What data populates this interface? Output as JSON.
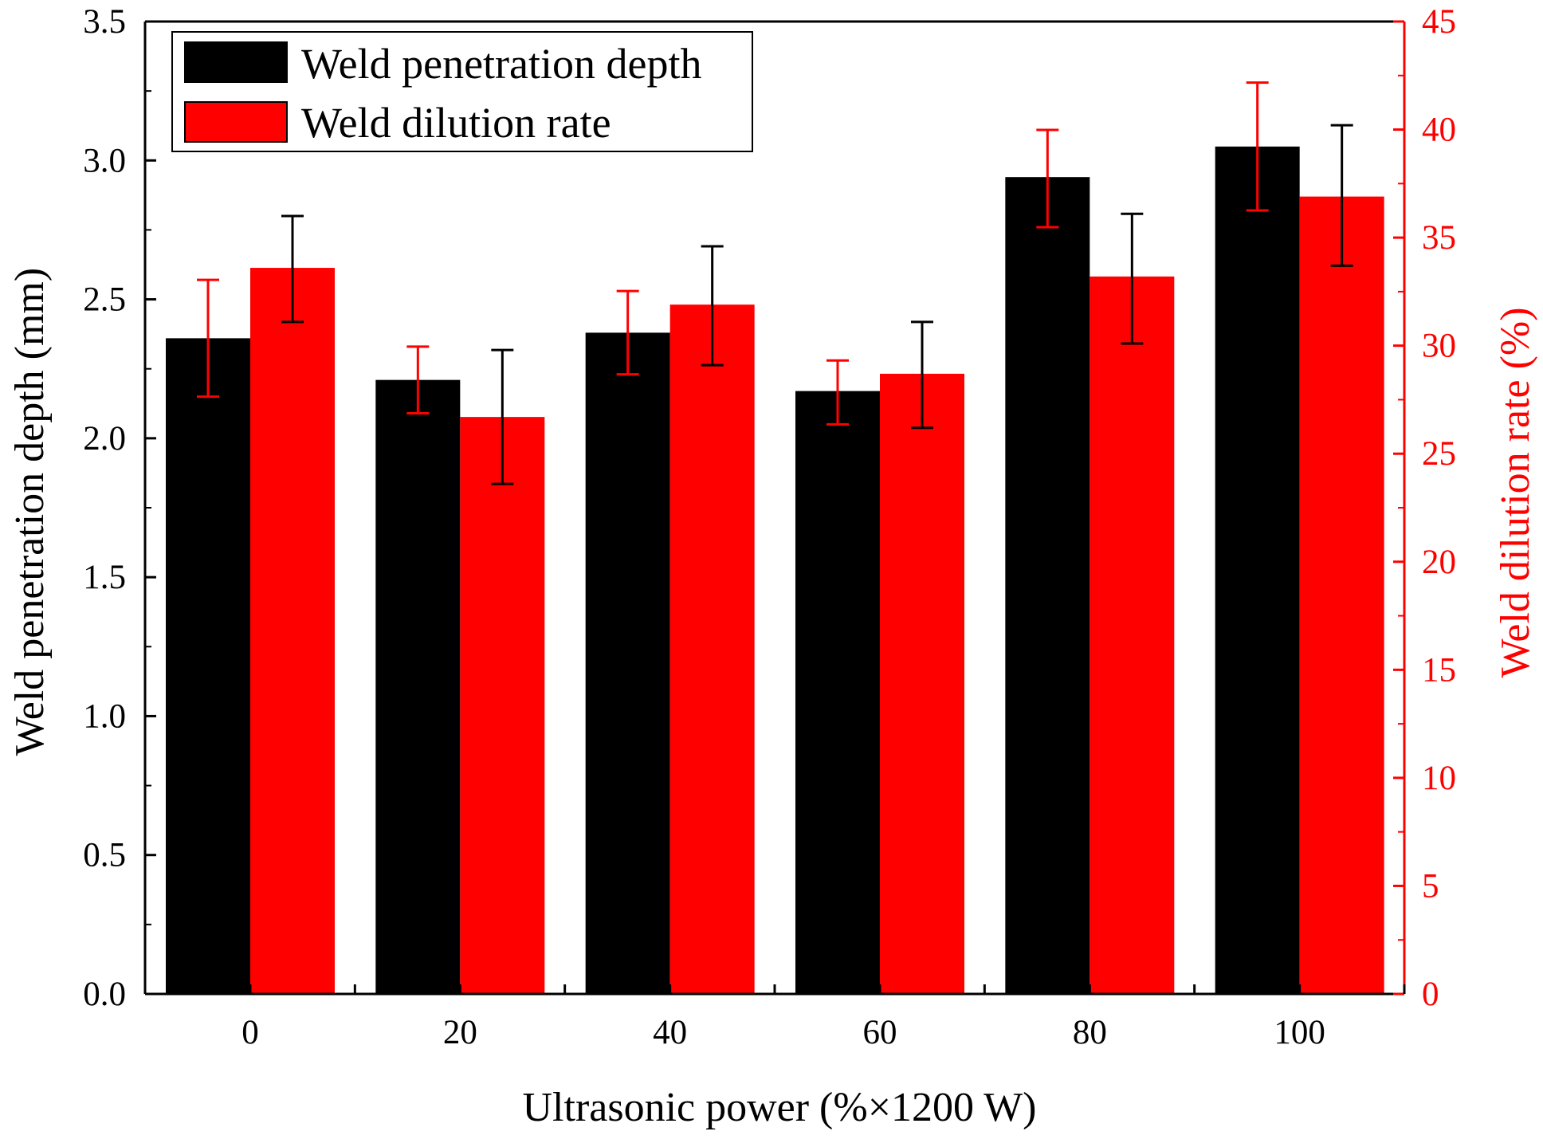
{
  "chart_data": {
    "type": "bar",
    "categories": [
      "0",
      "20",
      "40",
      "60",
      "80",
      "100"
    ],
    "xlabel": "Ultrasonic power (%×1200 W)",
    "y_left": {
      "label": "Weld penetration depth (mm)",
      "range": [
        0.0,
        3.5
      ],
      "ticks": [
        "0.0",
        "0.5",
        "1.0",
        "1.5",
        "2.0",
        "2.5",
        "3.0",
        "3.5"
      ],
      "color": "#000000"
    },
    "y_right": {
      "label": "Weld dilution rate (%)",
      "range": [
        0,
        45
      ],
      "ticks": [
        "0",
        "5",
        "10",
        "15",
        "20",
        "25",
        "30",
        "35",
        "40",
        "45"
      ],
      "color": "#ff0000"
    },
    "series": [
      {
        "name": "Weld penetration depth",
        "axis": "left",
        "color": "#000000",
        "errorbar_color": "#ff0000",
        "values": [
          2.36,
          2.21,
          2.38,
          2.17,
          2.94,
          3.05
        ],
        "err_low": [
          2.15,
          2.09,
          2.23,
          2.05,
          2.76,
          2.82
        ],
        "err_high": [
          2.57,
          2.33,
          2.53,
          2.28,
          3.11,
          3.28
        ]
      },
      {
        "name": "Weld dilution rate",
        "axis": "right",
        "color": "#ff0000",
        "errorbar_color": "#000000",
        "values": [
          33.6,
          26.7,
          31.9,
          28.7,
          33.2,
          36.9
        ],
        "err_low": [
          31.1,
          23.6,
          29.1,
          26.2,
          30.1,
          33.7
        ],
        "err_high": [
          36.0,
          29.8,
          34.6,
          31.1,
          36.1,
          40.2
        ]
      }
    ],
    "legend": {
      "position": "top-left",
      "entries": [
        "Weld penetration depth",
        "Weld dilution rate"
      ]
    }
  }
}
